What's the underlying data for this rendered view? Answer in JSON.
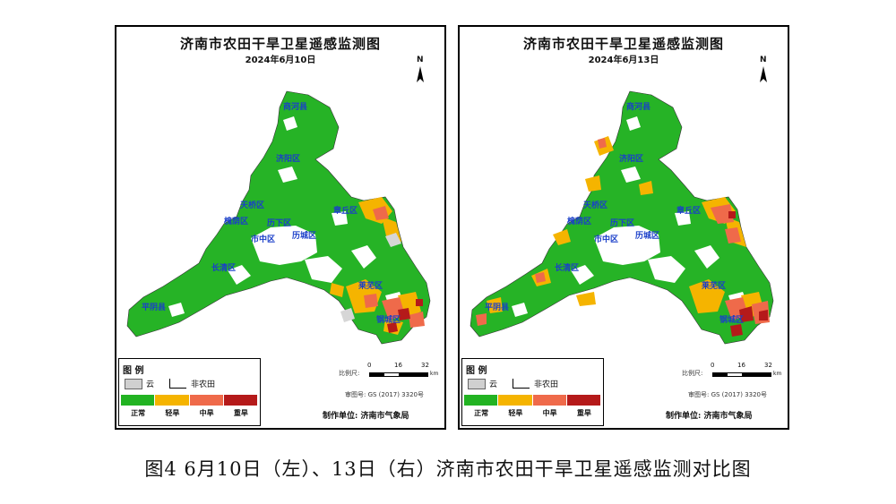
{
  "figure_caption": "图4 6月10日（左）、13日（右）济南市农田干旱卫星遥感监测对比图",
  "legend": {
    "title": "图 例",
    "cloud_label": "云",
    "nonfarm_label": "非农田",
    "classes": [
      {
        "label": "正常",
        "color": "#22b322"
      },
      {
        "label": "轻旱",
        "color": "#f5b400"
      },
      {
        "label": "中旱",
        "color": "#ef6a4a"
      },
      {
        "label": "重旱",
        "color": "#b51a1a"
      }
    ]
  },
  "scale": {
    "label": "比例尺:",
    "ticks": [
      "0",
      "16",
      "32"
    ],
    "unit": "km"
  },
  "approval": "审图号: GS (2017) 3320号",
  "producer": "制作单位:  济南市气象局",
  "north": "N",
  "panels": [
    {
      "title": "济南市农田干旱卫星遥感监测图",
      "date": "2024年6月10日",
      "places": [
        "商河县",
        "济阳区",
        "天桥区",
        "槐荫区",
        "历下区",
        "市中区",
        "历城区",
        "章丘区",
        "长清区",
        "莱芜区",
        "钢城区",
        "平阴县"
      ]
    },
    {
      "title": "济南市农田干旱卫星遥感监测图",
      "date": "2024年6月13日",
      "places": [
        "商河县",
        "济阳区",
        "天桥区",
        "槐荫区",
        "历下区",
        "市中区",
        "历城区",
        "章丘区",
        "长清区",
        "莱芜区",
        "钢城区",
        "平阴县"
      ]
    }
  ]
}
